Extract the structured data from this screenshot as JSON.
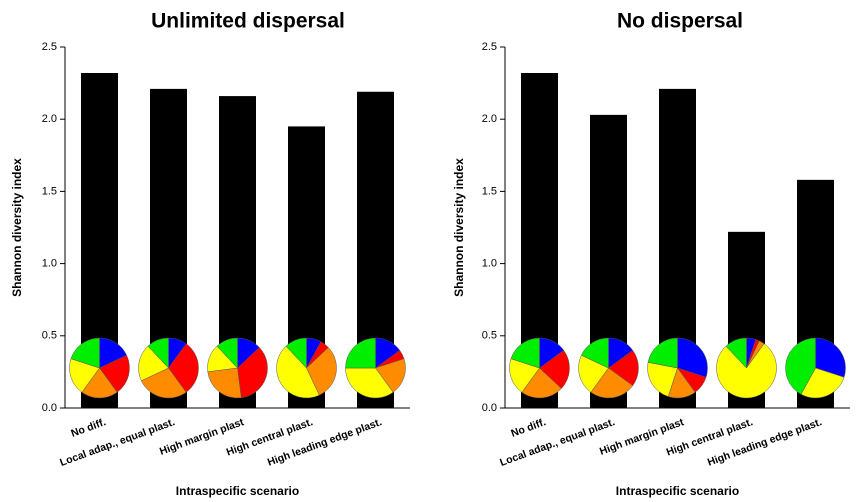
{
  "chart_data": [
    {
      "type": "bar",
      "title": "Unlimited dispersal",
      "ylabel": "Shannon diversity index",
      "xlabel": "Intraspecific scenario",
      "categories": [
        "No diff.",
        "Local adap., equal plast.",
        "High margin plast",
        "High central plast.",
        "High leading edge plast."
      ],
      "values": [
        2.32,
        2.21,
        2.16,
        1.95,
        2.19
      ],
      "color": "#000000",
      "ylim": [
        0,
        2.5
      ],
      "yticks": [
        {
          "value": 0,
          "label": "0.0"
        },
        0.5,
        {
          "value": 1,
          "label": "1.0"
        },
        1.5,
        {
          "value": 2,
          "label": "2.0"
        },
        2.5
      ],
      "pie_colors": [
        "#0000ff",
        "#ff0000",
        "#ff8c00",
        "#ffff00",
        "#00ee00"
      ],
      "pies": [
        [
          18,
          22,
          20,
          20,
          20
        ],
        [
          10,
          30,
          28,
          20,
          12
        ],
        [
          13,
          35,
          25,
          15,
          12
        ],
        [
          8,
          5,
          30,
          45,
          12
        ],
        [
          15,
          5,
          20,
          35,
          25
        ]
      ]
    },
    {
      "type": "bar",
      "title": "No dispersal",
      "ylabel": "Shannon diversity index",
      "xlabel": "Intraspecific scenario",
      "categories": [
        "No diff.",
        "Local adap., equal plast.",
        "High margin plast",
        "High central plast.",
        "High leading edge plast."
      ],
      "values": [
        2.32,
        2.03,
        2.21,
        1.22,
        1.58
      ],
      "color": "#000000",
      "ylim": [
        0,
        2.5
      ],
      "yticks": [
        {
          "value": 0,
          "label": "0.0"
        },
        0.5,
        {
          "value": 1,
          "label": "1.0"
        },
        1.5,
        {
          "value": 2,
          "label": "2.0"
        },
        2.5
      ],
      "pie_colors": [
        "#0000ff",
        "#ff0000",
        "#ff8c00",
        "#ffff00",
        "#00ee00"
      ],
      "pies": [
        [
          15,
          22,
          23,
          20,
          20
        ],
        [
          15,
          20,
          25,
          22,
          18
        ],
        [
          30,
          10,
          15,
          23,
          22
        ],
        [
          5,
          2,
          3,
          78,
          12
        ],
        [
          30,
          0,
          0,
          28,
          42
        ]
      ]
    }
  ]
}
